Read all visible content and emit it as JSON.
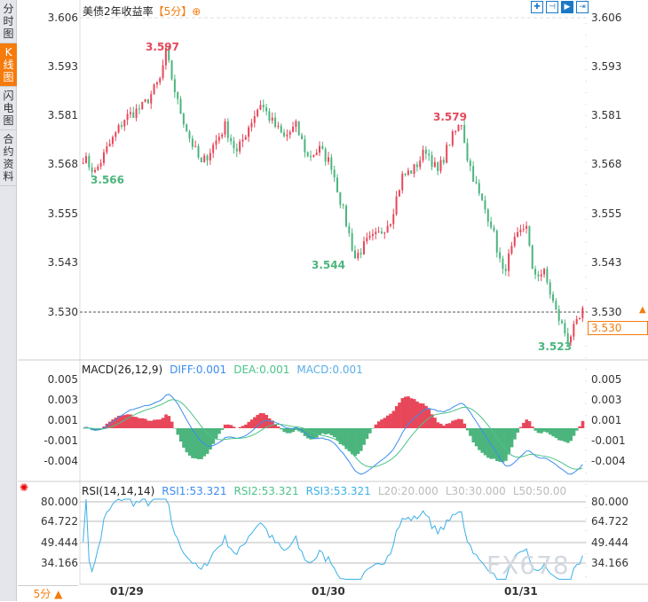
{
  "sidebar": {
    "tabs": [
      {
        "label": "分时图",
        "active": false
      },
      {
        "label": "K线图",
        "active": true
      },
      {
        "label": "闪电图",
        "active": false
      },
      {
        "label": "合约资料",
        "active": false
      }
    ]
  },
  "header": {
    "title": "美债2年收益率",
    "period": "【5分】",
    "add_icon": "⊕"
  },
  "toolbar": {
    "icons": [
      "crosshair-icon",
      "fit-left-icon",
      "play-right-icon",
      "scroll-end-icon"
    ]
  },
  "main": {
    "y_labels": [
      "3.606",
      "3.593",
      "3.581",
      "3.568",
      "3.555",
      "3.543",
      "3.530"
    ],
    "high_label": "3.597",
    "high2_label": "3.579",
    "low_label": "3.566",
    "low2_label": "3.544",
    "low3_label": "3.523",
    "current_price": "3.530"
  },
  "macd": {
    "title": "MACD(26,12,9)",
    "diff": "DIFF:0.001",
    "dea": "DEA:0.001",
    "macd": "MACD:0.001",
    "y_labels": [
      "0.005",
      "0.003",
      "0.001",
      "-0.001",
      "-0.004"
    ]
  },
  "rsi": {
    "title": "RSI(14,14,14)",
    "rsi1": "RSI1:53.321",
    "rsi2": "RSI2:53.321",
    "rsi3": "RSI3:53.321",
    "l20": "L20:20.000",
    "l30": "L30:30.000",
    "l50": "L50:50.00",
    "y_labels": [
      "80.000",
      "64.722",
      "49.444",
      "34.166"
    ]
  },
  "x_dates": [
    "01/29",
    "01/30",
    "01/31"
  ],
  "footer": {
    "period": "5分 ▲"
  },
  "watermark": "FX678",
  "colors": {
    "up": "#e8475a",
    "down": "#4cb57e",
    "diff": "#3b8cf0",
    "dea": "#4cc38a",
    "rsi": "#3cb0e8",
    "accent": "#f57b0d"
  },
  "chart_data": {
    "type": "candlestick",
    "count": 170,
    "ylim": [
      3.52,
      3.606
    ],
    "anchors": [
      [
        0,
        3.57
      ],
      [
        4,
        3.566
      ],
      [
        8,
        3.572
      ],
      [
        14,
        3.58
      ],
      [
        20,
        3.583
      ],
      [
        22,
        3.585
      ],
      [
        26,
        3.59
      ],
      [
        28,
        3.597
      ],
      [
        32,
        3.584
      ],
      [
        36,
        3.575
      ],
      [
        40,
        3.568
      ],
      [
        44,
        3.573
      ],
      [
        48,
        3.578
      ],
      [
        52,
        3.571
      ],
      [
        56,
        3.578
      ],
      [
        60,
        3.584
      ],
      [
        64,
        3.579
      ],
      [
        68,
        3.575
      ],
      [
        72,
        3.578
      ],
      [
        76,
        3.57
      ],
      [
        80,
        3.572
      ],
      [
        84,
        3.568
      ],
      [
        88,
        3.556
      ],
      [
        92,
        3.544
      ],
      [
        96,
        3.548
      ],
      [
        100,
        3.55
      ],
      [
        104,
        3.554
      ],
      [
        108,
        3.565
      ],
      [
        112,
        3.567
      ],
      [
        116,
        3.572
      ],
      [
        120,
        3.566
      ],
      [
        124,
        3.574
      ],
      [
        128,
        3.579
      ],
      [
        130,
        3.57
      ],
      [
        134,
        3.56
      ],
      [
        138,
        3.553
      ],
      [
        142,
        3.54
      ],
      [
        146,
        3.548
      ],
      [
        150,
        3.553
      ],
      [
        152,
        3.54
      ],
      [
        156,
        3.54
      ],
      [
        160,
        3.53
      ],
      [
        164,
        3.523
      ],
      [
        168,
        3.528
      ],
      [
        169,
        3.53
      ]
    ]
  }
}
